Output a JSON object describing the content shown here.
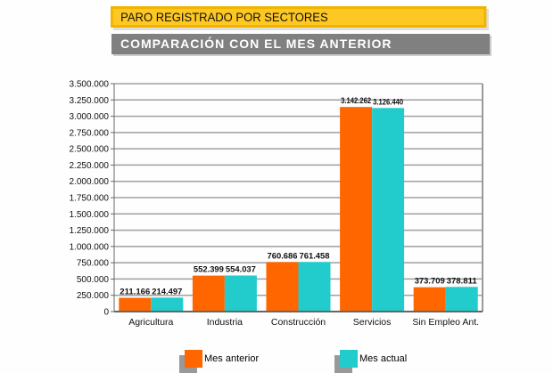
{
  "header": {
    "title": "PARO REGISTRADO POR SECTORES",
    "subtitle": "COMPARACIÓN CON EL MES ANTERIOR"
  },
  "chart_data": {
    "type": "bar",
    "categories": [
      "Agricultura",
      "Industria",
      "Construcción",
      "Servicios",
      "Sin Empleo Ant."
    ],
    "series": [
      {
        "name": "Mes anterior",
        "color": "#ff6600",
        "values": [
          211166,
          552399,
          760686,
          3142262,
          373709
        ],
        "labels": [
          "211.166",
          "552.399",
          "760.686",
          "3.142.262",
          "373.709"
        ]
      },
      {
        "name": "Mes actual",
        "color": "#22cccc",
        "values": [
          214497,
          554037,
          761458,
          3126440,
          378811
        ],
        "labels": [
          "214.497",
          "554.037",
          "761.458",
          "3.126.440",
          "378.811"
        ]
      }
    ],
    "ylim": [
      0,
      3500000
    ],
    "yticks": [
      "0",
      "250.000",
      "500.000",
      "750.000",
      "1.000.000",
      "1.250.000",
      "1.500.000",
      "1.750.000",
      "2.000.000",
      "2.250.000",
      "2.500.000",
      "2.750.000",
      "3.000.000",
      "3.250.000",
      "3.500.000"
    ],
    "grid": true,
    "legend": "bottom"
  }
}
